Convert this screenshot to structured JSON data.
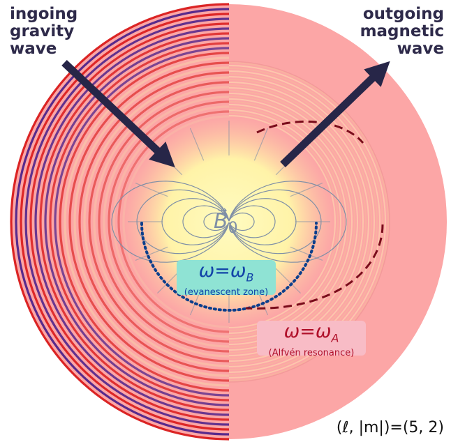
{
  "labels": {
    "ingoing": "ingoing\ngravity\nwave",
    "outgoing": "outgoing\nmagnetic\nwave",
    "field_symbol": "B",
    "field_subscript": "0",
    "field_vector_mark": "→",
    "resonance_b": {
      "omega": "ω",
      "equals": "=",
      "omega_sub": "ω",
      "subscript": "B",
      "caption": "(evanescent zone)"
    },
    "resonance_a": {
      "omega": "ω",
      "equals": "=",
      "omega_sub": "ω",
      "subscript": "A",
      "caption": "(Alfvén resonance)"
    },
    "mode": "(ℓ, |m|)=(5, 2)"
  },
  "colors": {
    "text_dark": "#2e2a4a",
    "arrow": "#272648",
    "salmon": "#fca6a6",
    "core": "#fff7b0",
    "wave_red": "#d91a1a",
    "wave_purple": "#4a1f8a",
    "evanescent_line": "#0b3f8c",
    "alfven_line": "#7a0d1b",
    "evanescent_text": "#1244a8",
    "alfven_text": "#b0102a",
    "field_lines": "#7f8fa6"
  }
}
